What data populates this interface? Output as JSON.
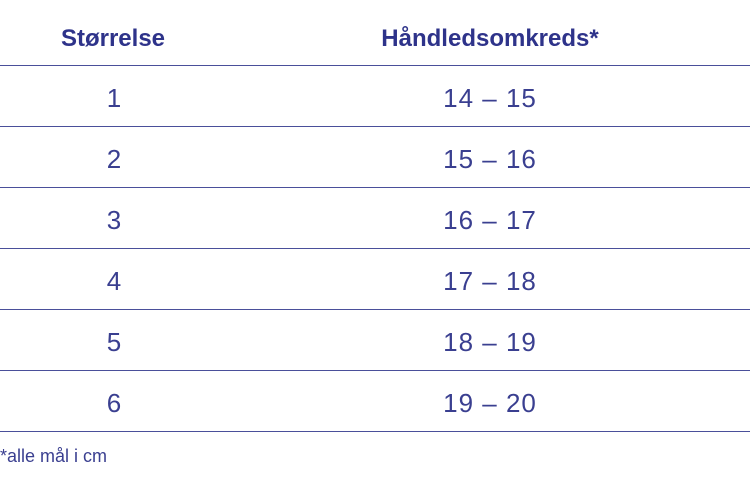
{
  "table": {
    "headers": {
      "size": "Størrelse",
      "circumference": "Håndledsomkreds*"
    },
    "rows": [
      {
        "size": "1",
        "circumference": "14 – 15"
      },
      {
        "size": "2",
        "circumference": "15 – 16"
      },
      {
        "size": "3",
        "circumference": "16 – 17"
      },
      {
        "size": "4",
        "circumference": "17 – 18"
      },
      {
        "size": "5",
        "circumference": "18 – 19"
      },
      {
        "size": "6",
        "circumference": "19 – 20"
      }
    ],
    "colors": {
      "text": "#2e338a",
      "rule": "#4a4f9a"
    }
  },
  "footnote": "*alle mål i cm"
}
